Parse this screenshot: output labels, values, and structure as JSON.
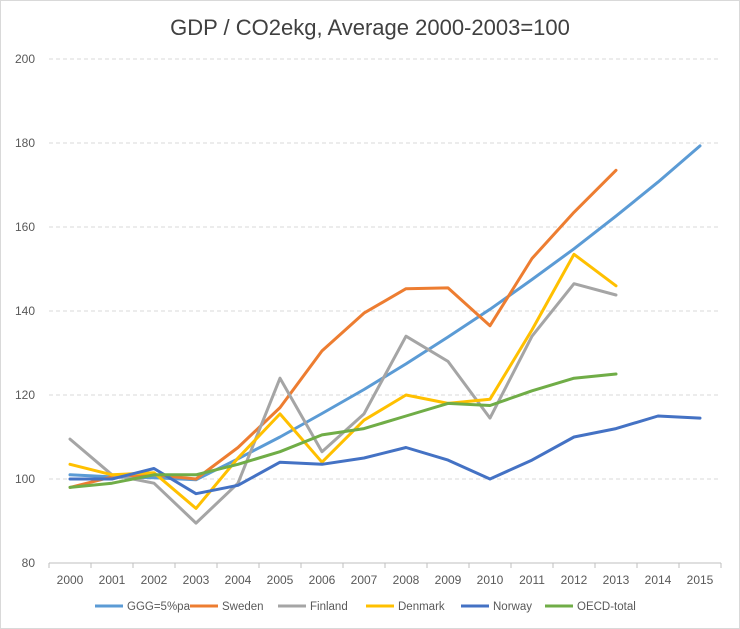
{
  "chart_data": {
    "type": "line",
    "title": "GDP / CO2ekg, Average 2000-2003=100",
    "xlabel": "",
    "ylabel": "",
    "x": [
      "2000",
      "2001",
      "2002",
      "2003",
      "2004",
      "2005",
      "2006",
      "2007",
      "2008",
      "2009",
      "2010",
      "2011",
      "2012",
      "2013",
      "2014",
      "2015"
    ],
    "ylim": [
      80,
      200
    ],
    "yticks": [
      80,
      100,
      120,
      140,
      160,
      180,
      200
    ],
    "grid": "horizontal dashed",
    "legend_position": "bottom",
    "series": [
      {
        "name": "GGG=5%pa",
        "color": "#5b9bd5",
        "values": [
          101,
          100.5,
          100.3,
          99.8,
          104.8,
          110.0,
          115.6,
          121.3,
          127.4,
          133.8,
          140.4,
          147.5,
          154.8,
          162.6,
          170.7,
          179.3
        ]
      },
      {
        "name": "Sweden",
        "color": "#ed7d31",
        "values": [
          98,
          100.5,
          101,
          100,
          107.5,
          117,
          130.5,
          139.5,
          145.3,
          145.5,
          136.5,
          152.5,
          163.5,
          173.5,
          null,
          null
        ]
      },
      {
        "name": "Finland",
        "color": "#a5a5a5",
        "values": [
          109.5,
          101,
          99,
          89.5,
          99,
          124,
          106.5,
          115.5,
          134,
          128,
          114.5,
          134,
          146.5,
          143.8,
          null,
          null
        ]
      },
      {
        "name": "Denmark",
        "color": "#ffc000",
        "values": [
          103.5,
          101,
          101.5,
          93,
          105,
          115.5,
          104,
          114,
          120,
          118,
          119,
          135.5,
          153.5,
          146,
          null,
          null
        ]
      },
      {
        "name": "Norway",
        "color": "#4472c4",
        "values": [
          100,
          100,
          102.5,
          96.5,
          98.5,
          104,
          103.5,
          105,
          107.5,
          104.5,
          100,
          104.5,
          110,
          112,
          115,
          114.5
        ]
      },
      {
        "name": "OECD-total",
        "color": "#70ad47",
        "values": [
          98,
          99,
          101,
          101,
          103.5,
          106.5,
          110.5,
          112,
          115,
          118,
          117.5,
          121,
          124,
          125,
          null,
          null
        ]
      }
    ]
  }
}
